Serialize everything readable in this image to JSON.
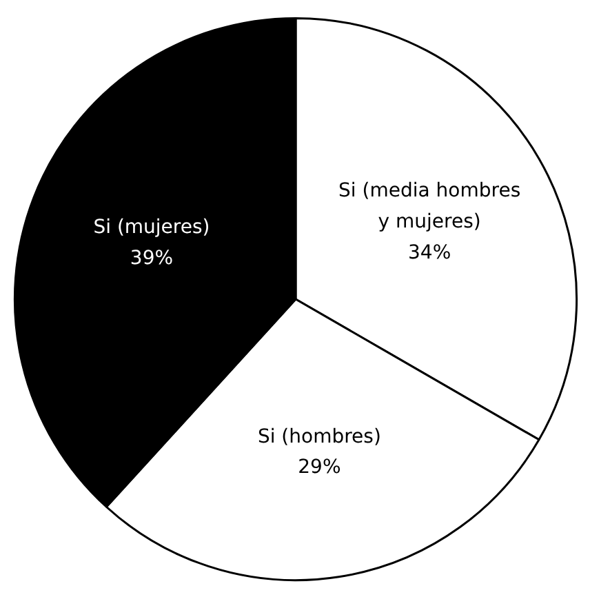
{
  "chart_data": {
    "type": "pie",
    "categories": [
      "Si (media hombres y mujeres)",
      "Si (hombres)",
      "Si (mujeres)"
    ],
    "values": [
      34,
      29,
      39
    ],
    "value_labels": [
      "34%",
      "29%",
      "39%"
    ],
    "colors": [
      "#ffffff",
      "#ffffff",
      "#000000"
    ]
  }
}
